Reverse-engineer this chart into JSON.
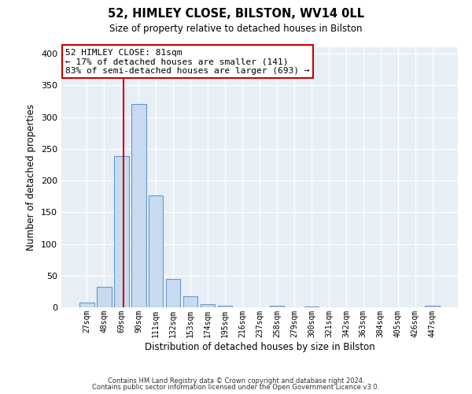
{
  "title": "52, HIMLEY CLOSE, BILSTON, WV14 0LL",
  "subtitle": "Size of property relative to detached houses in Bilston",
  "xlabel": "Distribution of detached houses by size in Bilston",
  "ylabel": "Number of detached properties",
  "bar_labels": [
    "27sqm",
    "48sqm",
    "69sqm",
    "90sqm",
    "111sqm",
    "132sqm",
    "153sqm",
    "174sqm",
    "195sqm",
    "216sqm",
    "237sqm",
    "258sqm",
    "279sqm",
    "300sqm",
    "321sqm",
    "342sqm",
    "363sqm",
    "384sqm",
    "405sqm",
    "426sqm",
    "447sqm"
  ],
  "bar_values": [
    8,
    32,
    238,
    320,
    176,
    45,
    17,
    5,
    3,
    0,
    0,
    3,
    0,
    1,
    0,
    0,
    0,
    0,
    0,
    0,
    2
  ],
  "bar_color": "#c8daf0",
  "bar_edge_color": "#6699cc",
  "property_line_index": 2,
  "property_line_color": "#cc0000",
  "ylim": [
    0,
    410
  ],
  "yticks": [
    0,
    50,
    100,
    150,
    200,
    250,
    300,
    350,
    400
  ],
  "annotation_line1": "52 HIMLEY CLOSE: 81sqm",
  "annotation_line2": "← 17% of detached houses are smaller (141)",
  "annotation_line3": "83% of semi-detached houses are larger (693) →",
  "annotation_box_color": "#ffffff",
  "annotation_box_edge": "#cc0000",
  "axes_bg": "#e8eef5",
  "grid_color": "#ffffff",
  "footnote1": "Contains HM Land Registry data © Crown copyright and database right 2024.",
  "footnote2": "Contains public sector information licensed under the Open Government Licence v3.0."
}
